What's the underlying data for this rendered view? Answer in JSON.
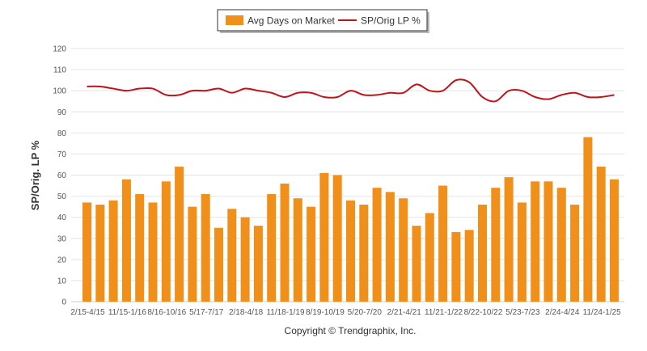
{
  "chart_data": {
    "type": "bar",
    "title": "",
    "xlabel": "",
    "ylabel": "SP/Orig. LP %",
    "ylim": [
      0,
      120
    ],
    "yticks": [
      0,
      10,
      20,
      30,
      40,
      50,
      60,
      70,
      80,
      90,
      100,
      110,
      120
    ],
    "grid": true,
    "legend_placement": "top-center",
    "x_tick_labels": [
      "2/15-4/15",
      "11/15-1/16",
      "8/16-10/16",
      "5/17-7/17",
      "2/18-4/18",
      "11/18-1/19",
      "8/19-10/19",
      "5/20-7/20",
      "2/21-4/21",
      "11/21-1/22",
      "8/22-10/22",
      "5/23-7/23",
      "2/24-4/24",
      "11/24-1/25"
    ],
    "series": [
      {
        "name": "Avg Days on Market",
        "kind": "bar",
        "color": "#f0901a",
        "values": [
          47,
          46,
          48,
          58,
          51,
          47,
          57,
          64,
          45,
          51,
          35,
          44,
          40,
          36,
          51,
          56,
          49,
          45,
          61,
          60,
          48,
          46,
          54,
          52,
          49,
          36,
          42,
          55,
          33,
          34,
          46,
          54,
          59,
          47,
          57,
          57,
          54,
          46,
          78,
          64,
          58
        ]
      },
      {
        "name": "SP/Orig LP %",
        "kind": "line",
        "color": "#c0141c",
        "values": [
          102,
          102,
          101,
          100,
          101,
          101,
          98,
          98,
          100,
          100,
          101,
          99,
          101,
          100,
          99,
          97,
          99,
          99,
          97,
          97,
          100,
          98,
          98,
          99,
          99,
          103,
          100,
          100,
          105,
          104,
          97,
          95,
          100,
          100,
          97,
          96,
          98,
          99,
          97,
          97,
          98
        ]
      }
    ]
  },
  "footer": {
    "copyright": "Copyright © Trendgraphix, Inc."
  }
}
